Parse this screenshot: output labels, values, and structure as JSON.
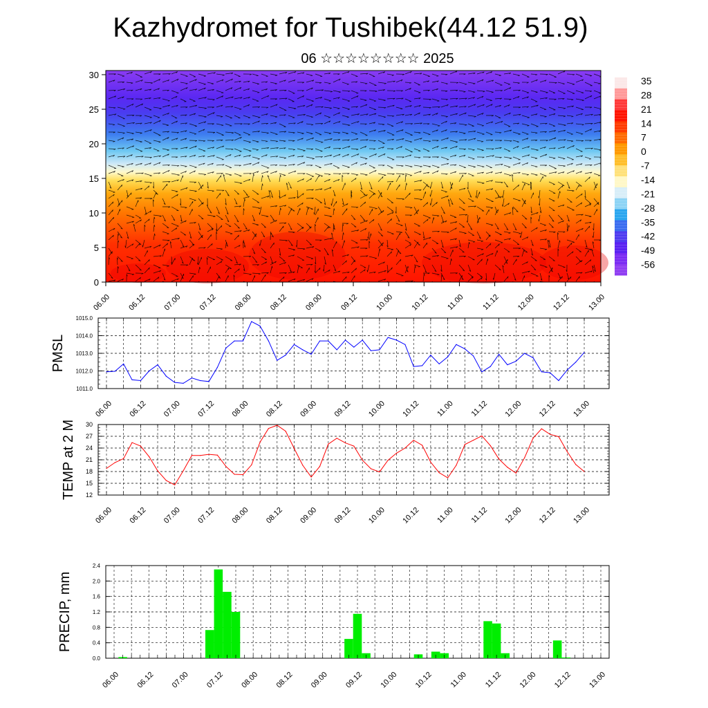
{
  "header": {
    "title": "Kazhydromet for Tushibek(44.12 51.9)",
    "subtitle": "06 ☆☆☆☆☆☆☆☆ 2025"
  },
  "colors": {
    "pmsl_line": "#0000ff",
    "temp_line": "#ff0000",
    "precip_bar": "#00ee00",
    "grid": "#000000"
  },
  "chart_data": [
    {
      "type": "heatmap",
      "name": "cross-section",
      "x_labels": [
        "06.00",
        "06.12",
        "07.00",
        "07.12",
        "08.00",
        "08.12",
        "09.00",
        "09.12",
        "10.00",
        "10.12",
        "11.00",
        "11.12",
        "12.00",
        "12.12",
        "13.00"
      ],
      "y_ticks": [
        0,
        5,
        10,
        15,
        20,
        25,
        30
      ],
      "ylim": [
        0,
        30.6
      ],
      "colorbar_labels": [
        "35",
        "28",
        "21",
        "14",
        "7",
        "0",
        "-7",
        "-14",
        "-21",
        "-28",
        "-35",
        "-42",
        "-49",
        "-56"
      ],
      "colorbar_colors": [
        "#fbe8e8",
        "#ff9a9a",
        "#ff3a3a",
        "#ff1400",
        "#ff3c00",
        "#ff6a00",
        "#ff9900",
        "#ffbe2a",
        "#ffe17a",
        "#fff8c8",
        "#d8eef8",
        "#8ed4f5",
        "#2ba6ef",
        "#3b6df0",
        "#4f3cf0",
        "#5a22f2",
        "#7a2cf3",
        "#8f3df2"
      ],
      "wind_barbs": true
    },
    {
      "type": "line",
      "name": "PMSL",
      "ylabel": "PMSL",
      "ylim": [
        1011.0,
        1015.0
      ],
      "y_ticks": [
        "1011.0",
        "1012.0",
        "1013.0",
        "1014.0",
        "1015.0"
      ],
      "x_labels": [
        "06.00",
        "06.12",
        "07.00",
        "07.12",
        "08.00",
        "08.12",
        "09.00",
        "09.12",
        "10.00",
        "10.12",
        "11.00",
        "11.12",
        "12.00",
        "12.12",
        "13.00"
      ],
      "values": [
        1011.95,
        1011.98,
        1012.4,
        1011.5,
        1011.45,
        1012.0,
        1012.35,
        1011.7,
        1011.35,
        1011.3,
        1011.6,
        1011.45,
        1011.4,
        1012.2,
        1013.3,
        1013.7,
        1013.7,
        1014.8,
        1014.55,
        1013.7,
        1012.6,
        1012.9,
        1013.5,
        1013.2,
        1012.95,
        1013.7,
        1013.7,
        1013.2,
        1013.75,
        1013.35,
        1013.75,
        1013.15,
        1013.2,
        1013.9,
        1013.75,
        1013.5,
        1012.25,
        1012.3,
        1012.9,
        1012.4,
        1012.8,
        1013.5,
        1013.25,
        1012.85,
        1011.95,
        1012.25,
        1012.95,
        1012.35,
        1012.55,
        1013.0,
        1012.75,
        1011.95,
        1011.9,
        1011.45,
        1012.05,
        1012.5,
        1013.05
      ]
    },
    {
      "type": "line",
      "name": "TEMP at 2 M",
      "ylabel": "TEMP at 2 M",
      "ylim": [
        12,
        30
      ],
      "y_ticks": [
        "12",
        "15",
        "18",
        "21",
        "24",
        "27",
        "30"
      ],
      "x_labels": [
        "06.00",
        "06.12",
        "07.00",
        "07.12",
        "08.00",
        "08.12",
        "09.00",
        "09.12",
        "10.00",
        "10.12",
        "11.00",
        "11.12",
        "12.00",
        "12.12",
        "13.00"
      ],
      "values": [
        18.8,
        20.3,
        21.3,
        25.4,
        24.5,
        21.8,
        18.2,
        15.7,
        14.6,
        18.2,
        22.1,
        22.1,
        22.4,
        22.2,
        19.3,
        17.3,
        17.2,
        19.7,
        25.5,
        29.0,
        29.8,
        28.3,
        23.9,
        19.6,
        16.6,
        19.3,
        25.0,
        26.5,
        25.3,
        24.5,
        20.9,
        18.7,
        17.9,
        20.9,
        22.7,
        24.0,
        26.0,
        24.7,
        20.4,
        17.7,
        16.4,
        19.6,
        24.9,
        26.0,
        27.1,
        24.6,
        21.2,
        19.1,
        17.6,
        21.5,
        26.5,
        28.9,
        27.5,
        26.9,
        23.1,
        19.8,
        18.0
      ]
    },
    {
      "type": "bar",
      "name": "PRECIP, mm",
      "ylabel": "PRECIP, mm",
      "ylim": [
        0,
        2.4
      ],
      "y_ticks": [
        "0.0",
        "0.4",
        "0.8",
        "1.2",
        "1.6",
        "2.0",
        "2.4"
      ],
      "x_labels": [
        "06.00",
        "06.12",
        "07.00",
        "07.12",
        "08.00",
        "08.12",
        "09.00",
        "09.12",
        "10.00",
        "10.12",
        "11.00",
        "11.12",
        "12.00",
        "12.12",
        "13.00"
      ],
      "values": [
        0,
        0.03,
        0,
        0,
        0,
        0,
        0,
        0,
        0,
        0,
        0,
        0.73,
        2.3,
        1.72,
        1.2,
        0,
        0,
        0,
        0,
        0,
        0,
        0,
        0,
        0,
        0,
        0,
        0,
        0.5,
        1.15,
        0.13,
        0,
        0,
        0,
        0,
        0,
        0.1,
        0,
        0.17,
        0.13,
        0,
        0,
        0,
        0,
        0.96,
        0.9,
        0.13,
        0,
        0,
        0,
        0,
        0,
        0.46,
        0.02,
        0,
        0,
        0,
        0
      ]
    }
  ]
}
